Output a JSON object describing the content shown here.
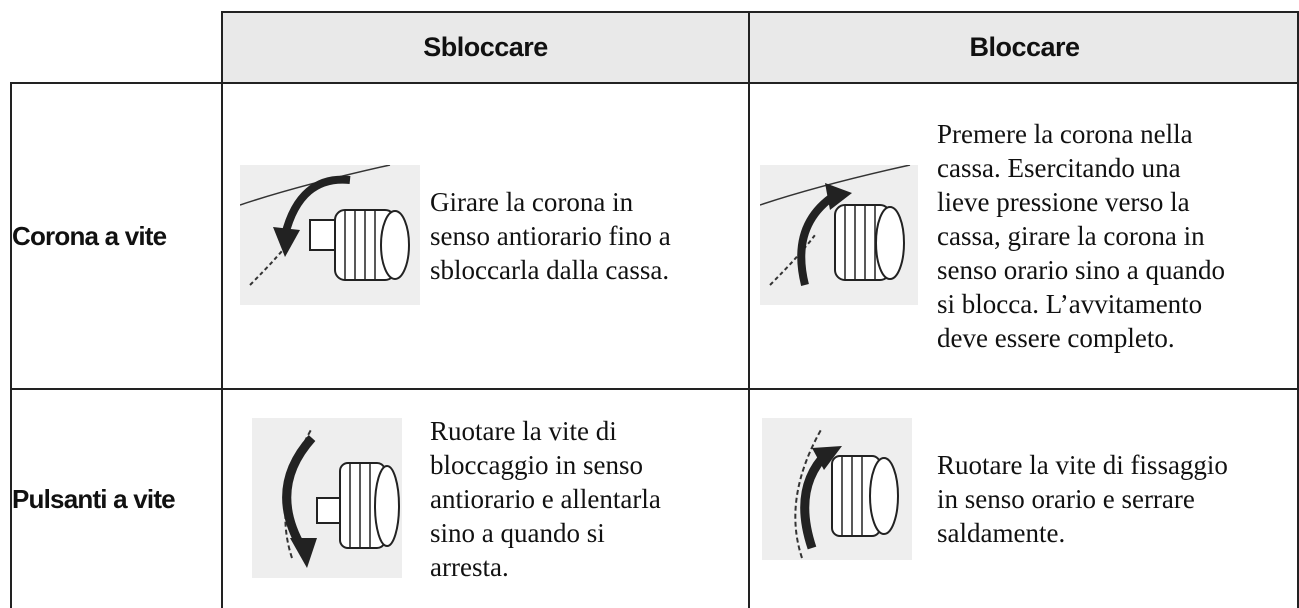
{
  "table": {
    "header": [
      "Sbloccare",
      "Bloccare"
    ],
    "rows": [
      {
        "label": "Corona a vite",
        "cells": [
          {
            "lines": [
              "Girare la corona in",
              "senso antiorario fino a",
              "sbloccarla dalla cassa."
            ]
          },
          {
            "lines": [
              "Premere la corona nella",
              "cassa. Esercitando una",
              "lieve pressione verso la",
              "cassa, girare la corona in",
              "senso orario sino a quando",
              "si blocca. L’avvitamento",
              "deve essere completo."
            ]
          }
        ]
      },
      {
        "label": "Pulsanti a vite",
        "cells": [
          {
            "lines": [
              "Ruotare la vite di",
              "bloccaggio in senso",
              "antiorario e allentarla",
              "sino a quando si",
              "arresta."
            ]
          },
          {
            "lines": [
              "Ruotare la vite di fissaggio",
              "in senso orario e serrare",
              "saldamente."
            ]
          }
        ]
      }
    ]
  }
}
